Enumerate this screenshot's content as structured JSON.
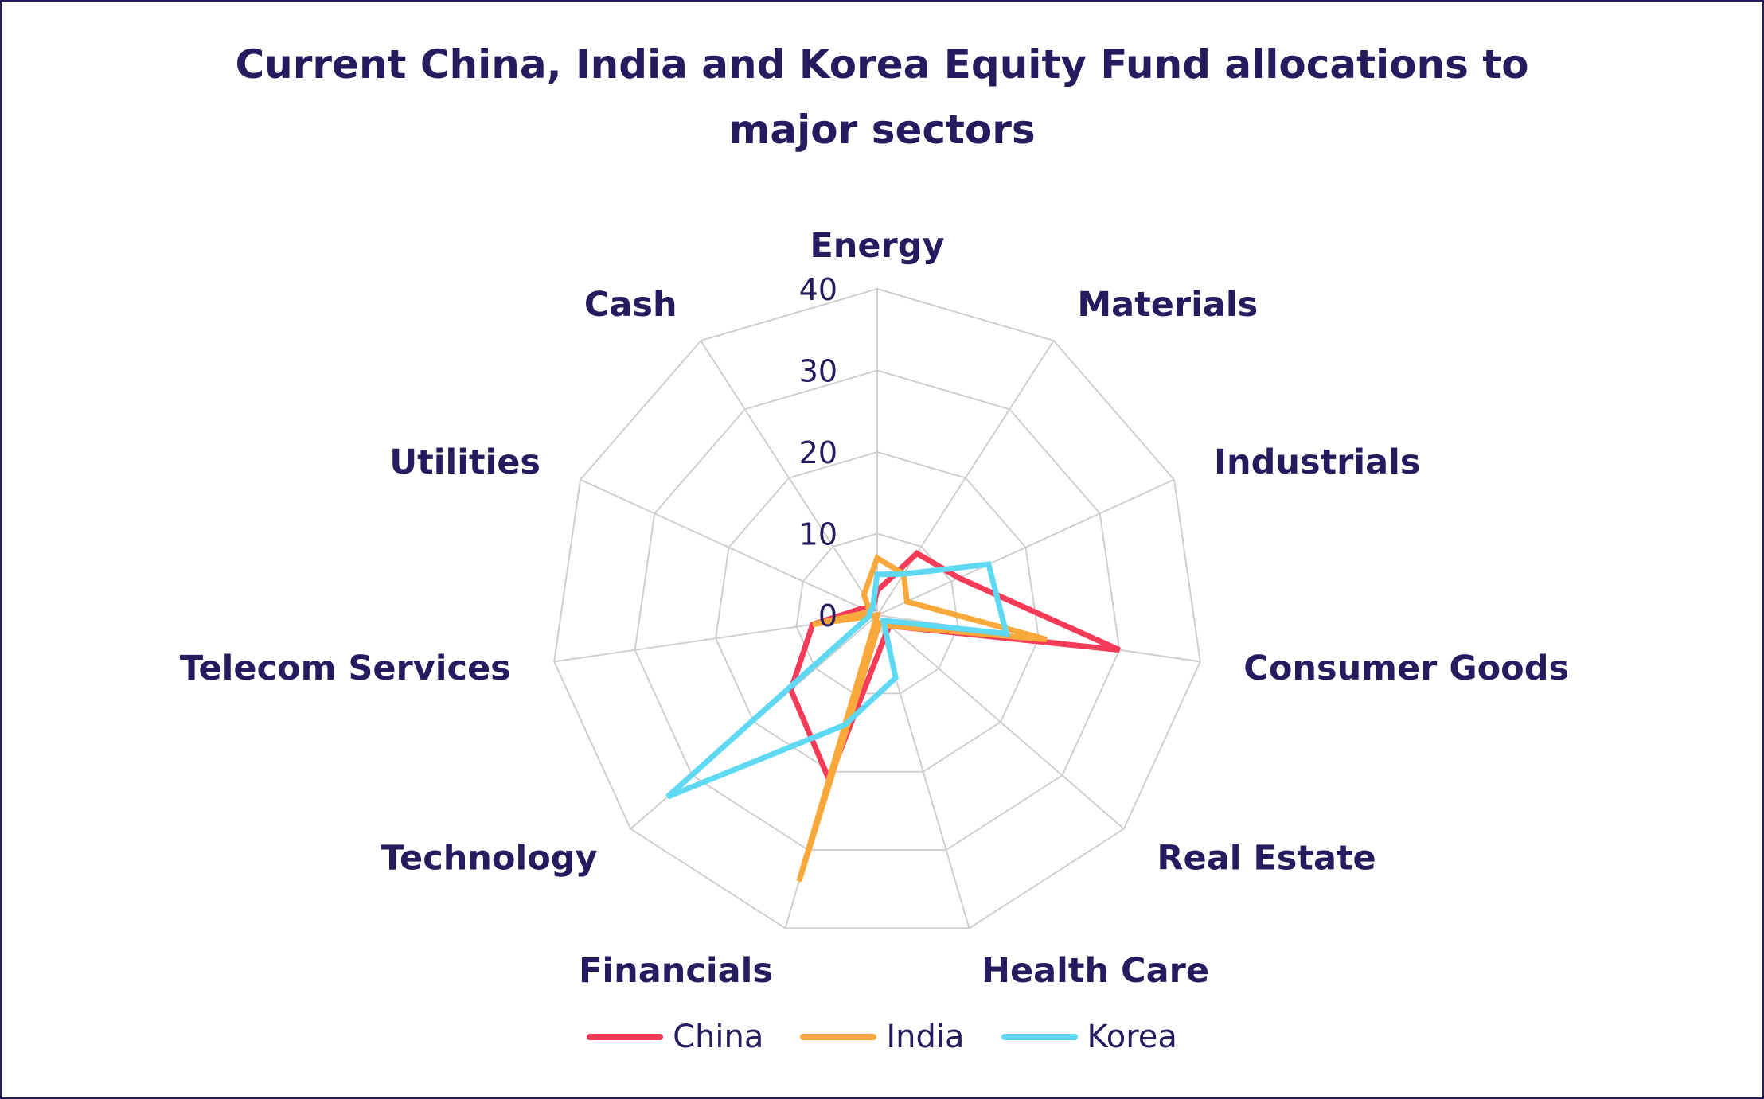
{
  "title_lines": [
    "Current China, India and Korea Equity Fund allocations to",
    "major sectors"
  ],
  "chart_data": {
    "type": "radar",
    "title": "Current China, India and Korea Equity Fund allocations to major sectors",
    "categories": [
      "Energy",
      "Materials",
      "Industrials",
      "Consumer Goods",
      "Real Estate",
      "Health Care",
      "Financials",
      "Technology",
      "Telecom Services",
      "Utilities",
      "Cash"
    ],
    "rlim": [
      0,
      40
    ],
    "ticks": [
      "0",
      "10",
      "20",
      "30",
      "40"
    ],
    "tick_values": [
      0,
      10,
      20,
      30,
      40
    ],
    "grid": true,
    "legend_position": "bottom",
    "series": [
      {
        "name": "China",
        "color": "#f53b57",
        "values": [
          3,
          9,
          11,
          30,
          2,
          3,
          21,
          14,
          8,
          2,
          1
        ]
      },
      {
        "name": "India",
        "color": "#f9a93b",
        "values": [
          7,
          6,
          4,
          21,
          2,
          1,
          34,
          0,
          8,
          1,
          3
        ]
      },
      {
        "name": "Korea",
        "color": "#5fd8f3",
        "values": [
          5,
          6,
          15,
          16,
          1,
          8,
          14,
          34,
          1,
          1,
          1
        ]
      }
    ]
  }
}
